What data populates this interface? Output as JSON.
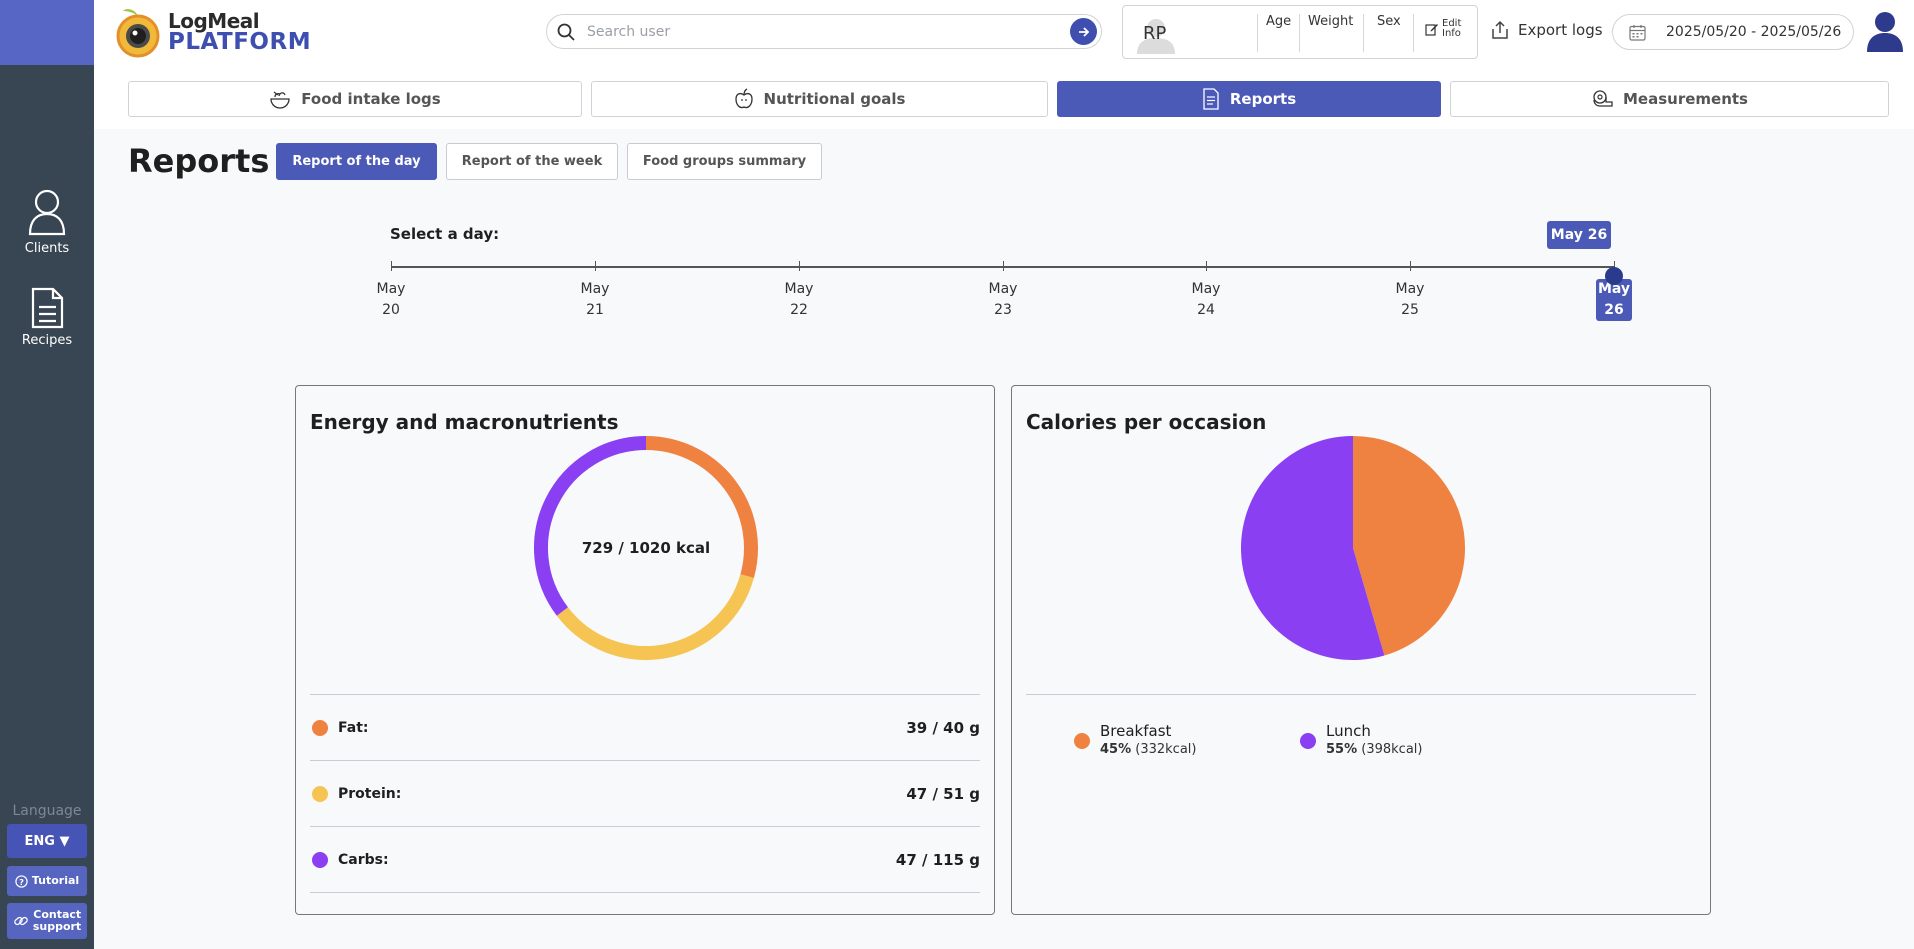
{
  "app": {
    "logo_line1": "LogMeal",
    "logo_line2": "PLATFORM",
    "brand_color": "#4b59b7"
  },
  "sidebar": {
    "items": [
      {
        "label": "Clients",
        "icon": "user-outline-icon"
      },
      {
        "label": "Recipes",
        "icon": "document-icon"
      }
    ],
    "language_label": "Language",
    "language_value": "ENG ▼",
    "tutorial_label": "Tutorial",
    "contact_line1": "Contact",
    "contact_line2": "support"
  },
  "header": {
    "search_placeholder": "Search user",
    "user_initials": "RP",
    "columns": [
      "Age",
      "Weight",
      "Sex"
    ],
    "edit_line1": "Edit",
    "edit_line2": "Info",
    "export_label": "Export logs",
    "date_range": "2025/05/20 - 2025/05/26"
  },
  "tabs": [
    {
      "label": "Food intake logs",
      "icon": "food-bowl-icon",
      "active": false
    },
    {
      "label": "Nutritional goals",
      "icon": "apple-icon",
      "active": false
    },
    {
      "label": "Reports",
      "icon": "report-icon",
      "active": true
    },
    {
      "label": "Measurements",
      "icon": "tape-measure-icon",
      "active": false
    }
  ],
  "page": {
    "title": "Reports",
    "subtabs": [
      {
        "label": "Report of the day",
        "active": true
      },
      {
        "label": "Report of the week",
        "active": false
      },
      {
        "label": "Food groups summary",
        "active": false
      }
    ]
  },
  "day_selector": {
    "label": "Select a day:",
    "selected_bubble": "May 26",
    "days": [
      {
        "month": "May",
        "day": "20"
      },
      {
        "month": "May",
        "day": "21"
      },
      {
        "month": "May",
        "day": "22"
      },
      {
        "month": "May",
        "day": "23"
      },
      {
        "month": "May",
        "day": "24"
      },
      {
        "month": "May",
        "day": "25"
      },
      {
        "month": "May",
        "day": "26"
      }
    ],
    "selected_index": 6
  },
  "energy_card": {
    "title": "Energy and macronutrients",
    "center_text": "729 / 1020 kcal",
    "macros": [
      {
        "name": "Fat:",
        "value": "39 / 40 g",
        "color": "#ef8240"
      },
      {
        "name": "Protein:",
        "value": "47 / 51 g",
        "color": "#f5c453"
      },
      {
        "name": "Carbs:",
        "value": "47 / 115 g",
        "color": "#8a3ff2"
      }
    ]
  },
  "occasion_card": {
    "title": "Calories per occasion",
    "legend": [
      {
        "name": "Breakfast",
        "percent": "45%",
        "kcal": "(332kcal)",
        "color": "#ef8240"
      },
      {
        "name": "Lunch",
        "percent": "55%",
        "kcal": "(398kcal)",
        "color": "#8a3ff2"
      }
    ]
  },
  "chart_data": [
    {
      "type": "pie",
      "title": "Energy and macronutrients",
      "subtype": "donut",
      "categories": [
        "Fat",
        "Protein",
        "Carbs"
      ],
      "values": [
        39,
        47,
        47
      ],
      "colors": [
        "#ef8240",
        "#f5c453",
        "#8a3ff2"
      ],
      "center_label": "729 / 1020 kcal"
    },
    {
      "type": "pie",
      "title": "Calories per occasion",
      "categories": [
        "Breakfast",
        "Lunch"
      ],
      "values": [
        332,
        398
      ],
      "percent_labels": [
        "45%",
        "55%"
      ],
      "colors": [
        "#ef8240",
        "#8a3ff2"
      ]
    }
  ]
}
